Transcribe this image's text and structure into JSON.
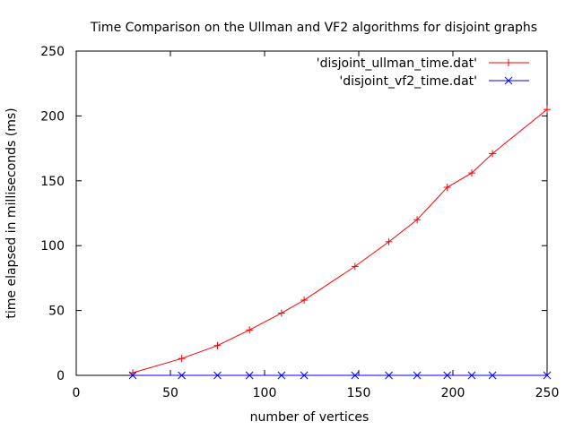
{
  "chart_data": {
    "type": "line",
    "title": "Time Comparison on the Ullman and VF2 algorithms for disjoint graphs",
    "xlabel": "number of vertices",
    "ylabel": "time elapsed in milliseconds (ms)",
    "xlim": [
      0,
      250
    ],
    "ylim": [
      0,
      250
    ],
    "xticks": [
      0,
      50,
      100,
      150,
      200,
      250
    ],
    "yticks": [
      0,
      50,
      100,
      150,
      200,
      250
    ],
    "xtick_labels": [
      "0",
      "50",
      "100",
      "150",
      "200",
      "250"
    ],
    "ytick_labels": [
      "0",
      "50",
      "100",
      "150",
      "200",
      "250"
    ],
    "grid": false,
    "legend_position": "top-right",
    "series": [
      {
        "name": "'disjoint_ullman_time.dat'",
        "color": "#ff0000",
        "marker": "plus",
        "x": [
          30,
          56,
          75,
          92,
          109,
          121,
          148,
          166,
          181,
          197,
          210,
          221,
          250
        ],
        "y": [
          2,
          13,
          23,
          35,
          48,
          58,
          84,
          103,
          120,
          145,
          156,
          171,
          205
        ]
      },
      {
        "name": "'disjoint_vf2_time.dat'",
        "color": "#0000ff",
        "marker": "cross",
        "x": [
          30,
          56,
          75,
          92,
          109,
          121,
          148,
          166,
          181,
          197,
          210,
          221,
          250
        ],
        "y": [
          0,
          0,
          0,
          0,
          0,
          0,
          0,
          0,
          0,
          0,
          0,
          0,
          0
        ]
      }
    ]
  }
}
